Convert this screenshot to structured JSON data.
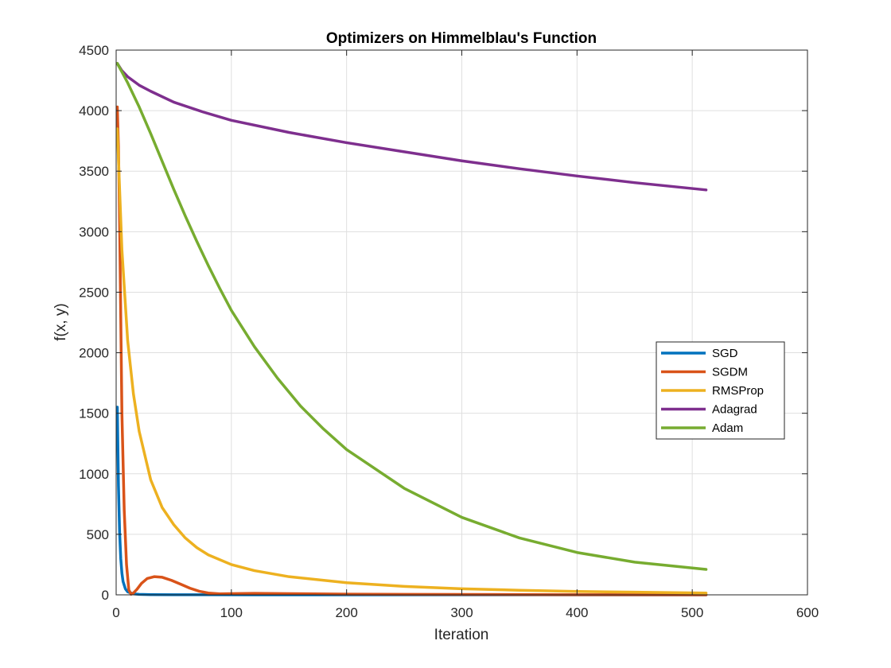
{
  "chart_data": {
    "type": "line",
    "title": "Optimizers on Himmelblau's Function",
    "xlabel": "Iteration",
    "ylabel": "f(x, y)",
    "xlim": [
      0,
      600
    ],
    "ylim": [
      0,
      4500
    ],
    "xticks": [
      "0",
      "100",
      "200",
      "300",
      "400",
      "500",
      "600"
    ],
    "yticks": [
      "0",
      "500",
      "1000",
      "1500",
      "2000",
      "2500",
      "3000",
      "3500",
      "4000",
      "4500"
    ],
    "grid": true,
    "legend_position": "center-right",
    "series": [
      {
        "name": "SGD",
        "color": "#0072BD",
        "x": [
          1,
          2,
          3,
          4,
          5,
          6,
          8,
          10,
          15,
          20,
          30,
          50,
          80,
          120,
          200,
          300,
          400,
          512
        ],
        "y": [
          1550,
          900,
          520,
          300,
          180,
          110,
          50,
          25,
          8,
          4,
          2,
          1,
          0.5,
          0.2,
          0.1,
          0,
          0,
          0
        ]
      },
      {
        "name": "SGDM",
        "color": "#D95319",
        "x": [
          1,
          2,
          3,
          4,
          5,
          7,
          9,
          11,
          13,
          15,
          18,
          22,
          27,
          33,
          40,
          48,
          56,
          64,
          72,
          80,
          90,
          100,
          120,
          150,
          200,
          300,
          400,
          512
        ],
        "y": [
          4030,
          3700,
          3100,
          2300,
          1500,
          700,
          250,
          40,
          5,
          15,
          45,
          95,
          135,
          150,
          145,
          120,
          88,
          55,
          30,
          15,
          8,
          10,
          12,
          10,
          6,
          3,
          1,
          0
        ]
      },
      {
        "name": "RMSProp",
        "color": "#EDB120",
        "x": [
          1,
          5,
          10,
          15,
          20,
          30,
          40,
          50,
          60,
          70,
          80,
          100,
          120,
          150,
          200,
          250,
          300,
          350,
          400,
          450,
          512
        ],
        "y": [
          3850,
          2850,
          2100,
          1660,
          1350,
          950,
          720,
          580,
          470,
          390,
          330,
          250,
          200,
          150,
          100,
          70,
          50,
          38,
          28,
          22,
          15
        ]
      },
      {
        "name": "Adagrad",
        "color": "#7E2F8E",
        "x": [
          1,
          5,
          10,
          20,
          30,
          50,
          75,
          100,
          150,
          200,
          250,
          300,
          350,
          400,
          450,
          512
        ],
        "y": [
          4390,
          4330,
          4280,
          4210,
          4160,
          4070,
          3990,
          3920,
          3820,
          3735,
          3660,
          3585,
          3520,
          3460,
          3405,
          3345
        ]
      },
      {
        "name": "Adam",
        "color": "#77AC30",
        "x": [
          1,
          5,
          10,
          20,
          30,
          40,
          50,
          60,
          70,
          80,
          90,
          100,
          120,
          140,
          160,
          180,
          200,
          250,
          300,
          350,
          400,
          450,
          512
        ],
        "y": [
          4390,
          4320,
          4230,
          4030,
          3810,
          3580,
          3350,
          3130,
          2920,
          2720,
          2530,
          2350,
          2050,
          1790,
          1560,
          1370,
          1200,
          880,
          640,
          470,
          350,
          270,
          210
        ]
      }
    ]
  }
}
